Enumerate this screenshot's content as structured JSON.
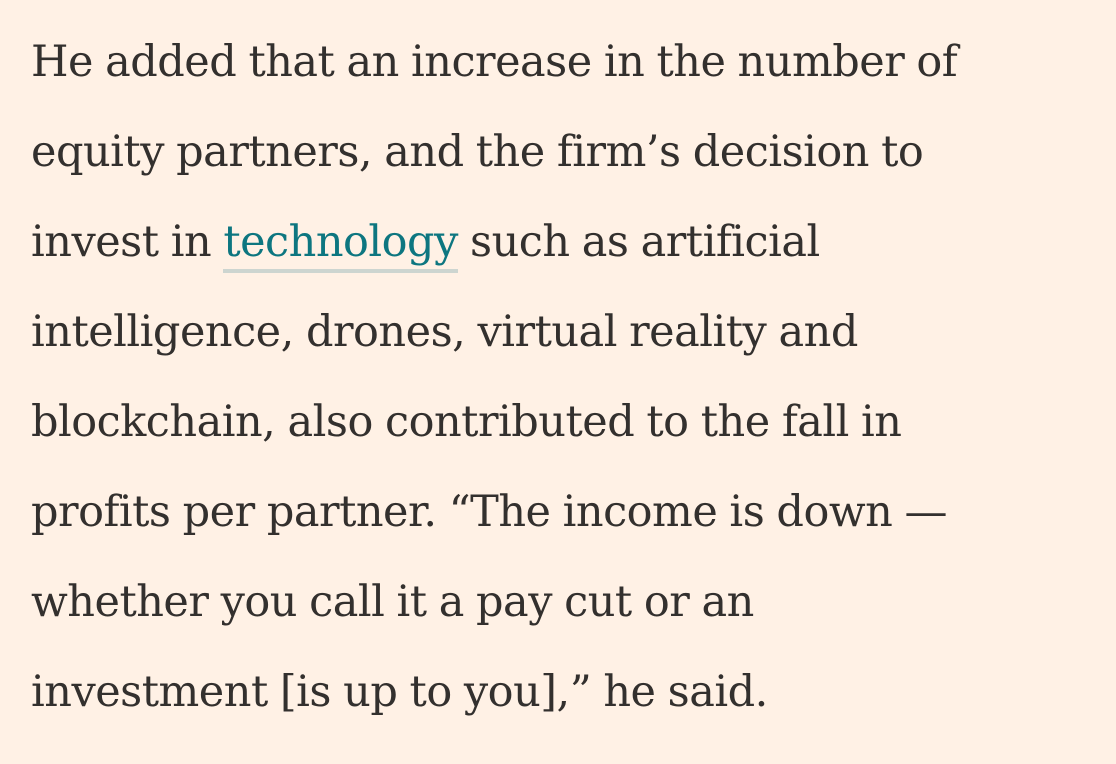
{
  "article": {
    "lines": [
      "He added that an increase in the number of",
      "equity partners, and the firm’s decision to",
      "such as artificial",
      "intelligence, drones, virtual reality and",
      "blockchain, also contributed to the fall in",
      "profits per partner. “The income is down —",
      "whether you call it a pay cut or an",
      "investment [is up to you],” he said."
    ],
    "line3_prefix": "invest in ",
    "link_text": "technology",
    "line3_suffix": " such as artificial"
  },
  "colors": {
    "background": "#fff1e5",
    "text": "#33302e",
    "link": "#0d7680",
    "link_underline": "#cdd5d0"
  }
}
